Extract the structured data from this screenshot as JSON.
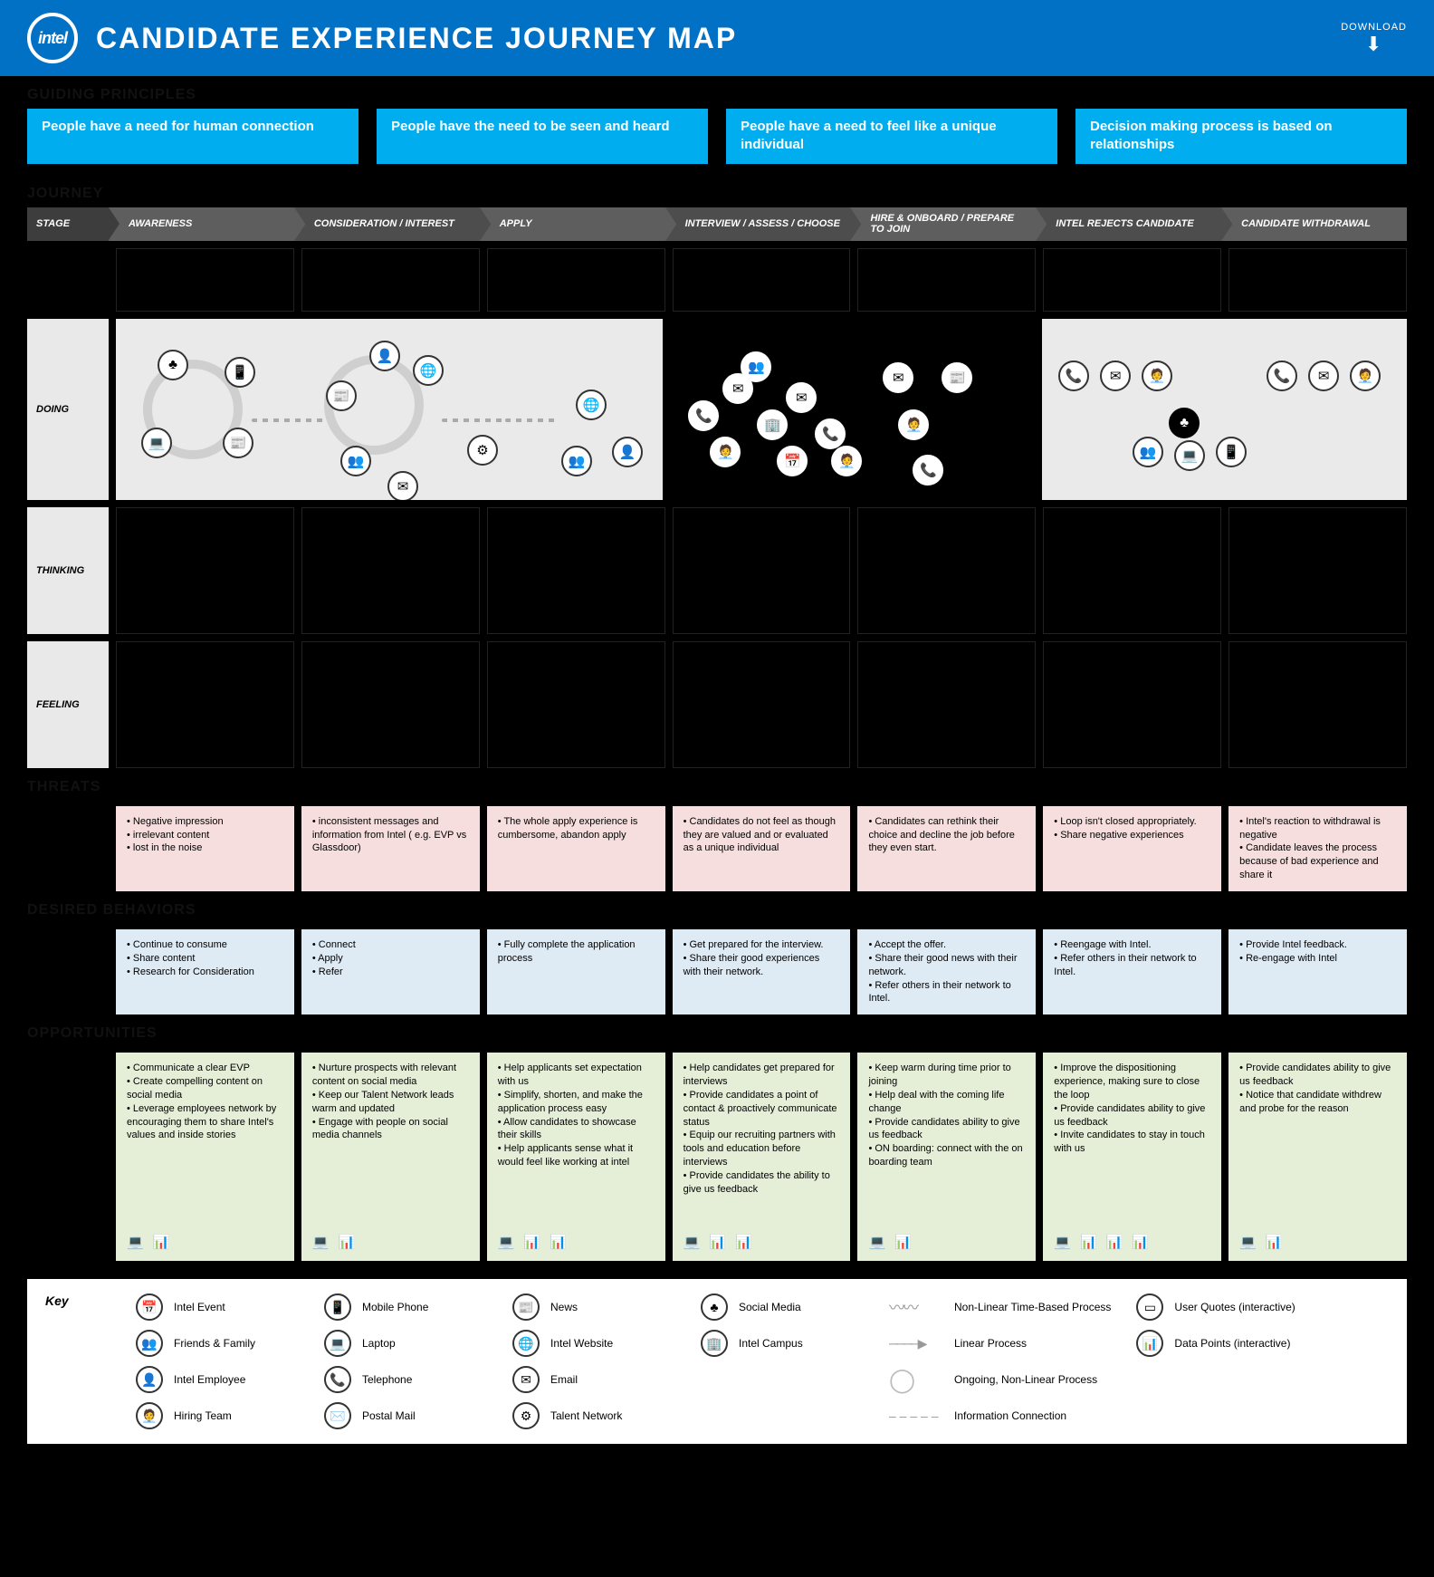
{
  "header": {
    "logo_text": "intel",
    "title": "CANDIDATE EXPERIENCE JOURNEY MAP",
    "download_label": "DOWNLOAD"
  },
  "sections": {
    "guiding": "GUIDING PRINCIPLES",
    "journey": "JOURNEY",
    "threats": "THREATS",
    "behaviors": "DESIRED BEHAVIORS",
    "opps": "OPPORTUNITIES"
  },
  "principles": [
    "People have a need for human connection",
    "People have the need to be seen and heard",
    "People have a need to feel like a unique individual",
    "Decision making process is based on relationships"
  ],
  "stage_label": "STAGE",
  "stages": [
    "AWARENESS",
    "CONSIDERATION / INTEREST",
    "APPLY",
    "INTERVIEW / ASSESS / CHOOSE",
    "HIRE & ONBOARD / PREPARE TO JOIN",
    "INTEL REJECTS CANDIDATE",
    "CANDIDATE WITHDRAWAL"
  ],
  "row_labels": {
    "doing": "DOING",
    "thinking": "THINKING",
    "feeling": "FEELING"
  },
  "threats": [
    [
      "Negative impression",
      "irrelevant content",
      "lost in the noise"
    ],
    [
      "inconsistent messages and information from Intel ( e.g. EVP vs Glassdoor)"
    ],
    [
      "The whole apply experience is cumbersome, abandon apply"
    ],
    [
      "Candidates do not feel as though they are valued and or evaluated as a unique individual"
    ],
    [
      "Candidates can rethink their choice and decline the job before they even start."
    ],
    [
      "Loop isn't closed appropriately.",
      "Share negative experiences"
    ],
    [
      "Intel's reaction to withdrawal is negative",
      "Candidate leaves the process because of bad experience and share it"
    ]
  ],
  "behaviors": [
    [
      "Continue to consume",
      "Share content",
      "Research for Consideration"
    ],
    [
      "Connect",
      "Apply",
      "Refer"
    ],
    [
      "Fully complete the application process"
    ],
    [
      "Get prepared for the interview.",
      "Share their good experiences with their network."
    ],
    [
      "Accept the offer.",
      "Share their good news with their network.",
      "Refer others in their network to Intel."
    ],
    [
      "Reengage with Intel.",
      "Refer others in their network to Intel."
    ],
    [
      "Provide Intel feedback.",
      "Re-engage with Intel"
    ]
  ],
  "opps": [
    [
      "Communicate a clear EVP",
      "Create compelling content on social media",
      "Leverage employees network by encouraging them to share Intel's values and inside stories"
    ],
    [
      "Nurture prospects with relevant content on social media",
      "Keep our Talent Network leads warm and updated",
      "Engage with people on social media channels"
    ],
    [
      "Help applicants set expectation with us",
      "Simplify, shorten, and make the application process easy",
      "Allow candidates to showcase their skills",
      "Help applicants sense what it would feel like working at intel"
    ],
    [
      "Help candidates get prepared for interviews",
      "Provide candidates a point of contact & proactively communicate status",
      "Equip our recruiting partners with tools and education before interviews",
      "Provide candidates the ability to give us feedback"
    ],
    [
      "Keep warm during time prior to joining",
      "Help deal with the coming life change",
      "Provide candidates ability to give us feedback",
      "ON boarding: connect with the on boarding team"
    ],
    [
      "Improve the dispositioning experience, making sure to close the loop",
      "Provide candidates ability to give us feedback",
      "Invite candidates to stay in touch with us"
    ],
    [
      "Provide candidates ability to give us feedback",
      "Notice that candidate withdrew and probe for the reason"
    ]
  ],
  "opp_icons": [
    [
      "💻",
      "📊"
    ],
    [
      "💻",
      "📊"
    ],
    [
      "💻",
      "📊",
      "📊"
    ],
    [
      "💻",
      "📊",
      "📊"
    ],
    [
      "💻",
      "📊"
    ],
    [
      "💻",
      "📊",
      "📊",
      "📊"
    ],
    [
      "💻",
      "📊"
    ]
  ],
  "key_label": "Key",
  "key": {
    "col1": [
      {
        "icon": "📅",
        "label": "Intel Event"
      },
      {
        "icon": "👥",
        "label": "Friends & Family"
      },
      {
        "icon": "👤",
        "label": "Intel Employee"
      },
      {
        "icon": "🧑‍💼",
        "label": "Hiring Team"
      }
    ],
    "col2": [
      {
        "icon": "📱",
        "label": "Mobile Phone"
      },
      {
        "icon": "💻",
        "label": "Laptop"
      },
      {
        "icon": "📞",
        "label": "Telephone"
      },
      {
        "icon": "✉️",
        "label": "Postal Mail"
      }
    ],
    "col3": [
      {
        "icon": "📰",
        "label": "News"
      },
      {
        "icon": "🌐",
        "label": "Intel Website"
      },
      {
        "icon": "✉",
        "label": "Email"
      },
      {
        "icon": "⚙",
        "label": "Talent Network"
      }
    ],
    "col4": [
      {
        "icon": "♣",
        "label": "Social Media"
      },
      {
        "icon": "🏢",
        "label": "Intel Campus"
      }
    ],
    "col5": [
      {
        "cls": "wave",
        "label": "Non-Linear Time-Based Process"
      },
      {
        "cls": "arrowln",
        "label": "Linear Process"
      },
      {
        "cls": "ring2",
        "label": "Ongoing, Non-Linear Process"
      },
      {
        "cls": "dashed",
        "label": "Information Connection"
      }
    ],
    "col6": [
      {
        "icon": "▭",
        "label": "User Quotes (interactive)"
      },
      {
        "icon": "📊",
        "label": "Data Points (interactive)"
      }
    ]
  },
  "colors": {
    "header_bg": "#0071c5",
    "principle_bg": "#00aeef",
    "threat_bg": "#f6dede",
    "behavior_bg": "#deeaf4",
    "opp_bg": "#e5efd8",
    "panel_light": "#eaeaea"
  }
}
